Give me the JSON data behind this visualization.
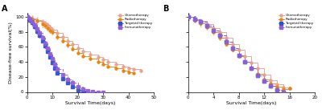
{
  "panel_A": {
    "title": "A",
    "xlabel": "Survival Time(days)",
    "ylabel": "Disease-free survival(%)",
    "xlim": [
      0,
      50
    ],
    "ylim": [
      0,
      105
    ],
    "xticks": [
      0,
      10,
      20,
      30,
      40,
      50
    ],
    "yticks": [
      0,
      20,
      40,
      60,
      80,
      100
    ],
    "series": {
      "Chemotherapy": {
        "color": "#E8A090",
        "linestyle": "-",
        "marker": "o",
        "x": [
          0,
          2,
          4,
          6,
          7,
          8,
          9,
          10,
          12,
          14,
          16,
          18,
          20,
          22,
          25,
          28,
          30,
          32,
          35,
          38,
          40,
          42,
          45
        ],
        "y": [
          100,
          98,
          96,
          93,
          91,
          89,
          86,
          83,
          78,
          73,
          68,
          63,
          58,
          54,
          50,
          46,
          43,
          40,
          37,
          34,
          32,
          30,
          28
        ]
      },
      "Radiotherapy": {
        "color": "#E8820A",
        "linestyle": "-",
        "marker": "o",
        "x": [
          0,
          2,
          4,
          6,
          7,
          8,
          9,
          10,
          12,
          14,
          16,
          18,
          20,
          22,
          25,
          28,
          30,
          32,
          35,
          38,
          40,
          42
        ],
        "y": [
          100,
          97,
          94,
          90,
          88,
          85,
          82,
          79,
          73,
          68,
          62,
          57,
          52,
          48,
          44,
          40,
          37,
          34,
          31,
          28,
          26,
          25
        ]
      },
      "Targeted therapy": {
        "color": "#3050C8",
        "linestyle": "--",
        "marker": "s",
        "x": [
          0,
          1,
          2,
          3,
          4,
          5,
          6,
          7,
          8,
          9,
          10,
          11,
          12,
          14,
          16,
          18,
          20,
          22,
          23
        ],
        "y": [
          100,
          96,
          92,
          87,
          81,
          75,
          68,
          61,
          54,
          46,
          39,
          32,
          25,
          18,
          12,
          7,
          3,
          1,
          0
        ]
      },
      "Immunotherapy": {
        "color": "#9060D8",
        "linestyle": "--",
        "marker": "s",
        "x": [
          0,
          1,
          2,
          3,
          4,
          5,
          6,
          7,
          8,
          9,
          10,
          11,
          12,
          14,
          16,
          18,
          20,
          22,
          24,
          26,
          28,
          30
        ],
        "y": [
          100,
          97,
          93,
          89,
          84,
          78,
          72,
          65,
          58,
          51,
          44,
          37,
          30,
          23,
          17,
          12,
          7,
          4,
          2,
          1,
          0,
          0
        ]
      }
    }
  },
  "panel_B": {
    "title": "B",
    "xlabel": "Survival Time(days)",
    "ylabel": "Disease-free survival(%)",
    "xlim": [
      0,
      20
    ],
    "ylim": [
      0,
      105
    ],
    "xticks": [
      0,
      4,
      8,
      12,
      16,
      20
    ],
    "yticks": [
      0,
      20,
      40,
      60,
      80,
      100
    ],
    "series": {
      "Chemotherapy": {
        "color": "#E8A090",
        "linestyle": "-",
        "marker": "o",
        "x": [
          0,
          1,
          2,
          3,
          4,
          5,
          6,
          7,
          8,
          9,
          10,
          11,
          12,
          13,
          14,
          15,
          16
        ],
        "y": [
          100,
          97,
          94,
          90,
          85,
          79,
          72,
          64,
          56,
          47,
          39,
          31,
          23,
          16,
          10,
          6,
          5
        ]
      },
      "Radiotherapy": {
        "color": "#E8820A",
        "linestyle": "-",
        "marker": "o",
        "x": [
          0,
          1,
          2,
          3,
          4,
          5,
          6,
          7,
          8,
          9,
          10,
          11,
          12,
          13,
          14,
          15,
          16
        ],
        "y": [
          100,
          96,
          91,
          86,
          79,
          72,
          64,
          56,
          48,
          40,
          32,
          24,
          17,
          11,
          7,
          4,
          5
        ]
      },
      "Targeted therapy": {
        "color": "#3050C8",
        "linestyle": "--",
        "marker": "s",
        "x": [
          0,
          1,
          2,
          3,
          4,
          5,
          6,
          7,
          8,
          9,
          10,
          11,
          12,
          13,
          14,
          15
        ],
        "y": [
          100,
          97,
          93,
          88,
          82,
          75,
          67,
          58,
          49,
          40,
          31,
          22,
          14,
          8,
          3,
          0
        ]
      },
      "Immunotherapy": {
        "color": "#9060D8",
        "linestyle": "--",
        "marker": "s",
        "x": [
          0,
          1,
          2,
          3,
          4,
          5,
          6,
          7,
          8,
          9,
          10,
          11,
          12,
          13,
          14,
          15
        ],
        "y": [
          100,
          97,
          93,
          88,
          82,
          75,
          67,
          58,
          49,
          40,
          31,
          22,
          14,
          8,
          3,
          0
        ]
      }
    }
  },
  "legend_labels": [
    "Chemotherapy",
    "Radiotherapy",
    "Targeted therapy",
    "Immunotherapy"
  ],
  "legend_colors": [
    "#E8A090",
    "#E8820A",
    "#3050C8",
    "#9060D8"
  ],
  "legend_linestyles": [
    "-",
    "-",
    "--",
    "--"
  ],
  "legend_markers": [
    "o",
    "o",
    "s",
    "s"
  ]
}
